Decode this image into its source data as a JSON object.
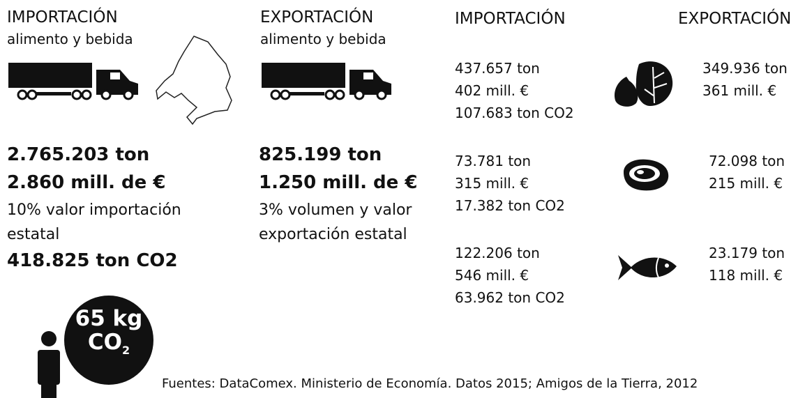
{
  "left": {
    "title": "IMPORTACIÓN",
    "subtitle": "alimento y bebida",
    "tons": "2.765.203 ton",
    "money": "2.860 mill. de €",
    "share": "10% valor importación estatal",
    "co2": "418.825 ton CO2"
  },
  "middle": {
    "title": "EXPORTACIÓN",
    "subtitle": "alimento y bebida",
    "tons": "825.199 ton",
    "money": "1.250 mill. de €",
    "share": "3% volumen y valor exportación estatal"
  },
  "right": {
    "import_header": "IMPORTACIÓN",
    "export_header": "EXPORTACIÓN",
    "rows": [
      {
        "import": [
          "437.657 ton",
          "402 mill. €",
          "107.683 ton CO2"
        ],
        "export": [
          "349.936 ton",
          "361 mill. €"
        ]
      },
      {
        "import": [
          "73.781 ton",
          "315 mill. €",
          "17.382 ton CO2"
        ],
        "export": [
          "72.098 ton",
          "215 mill. €"
        ]
      },
      {
        "import": [
          "122.206 ton",
          "546 mill. €",
          "63.962 ton CO2"
        ],
        "export": [
          "23.179 ton",
          "118 mill. €"
        ]
      }
    ]
  },
  "bubble": {
    "amount": "65 kg",
    "gas": "CO",
    "subscript": "2"
  },
  "source": "Fuentes: DataComex. Ministerio de Economía. Datos 2015; Amigos de la Tierra, 2012"
}
